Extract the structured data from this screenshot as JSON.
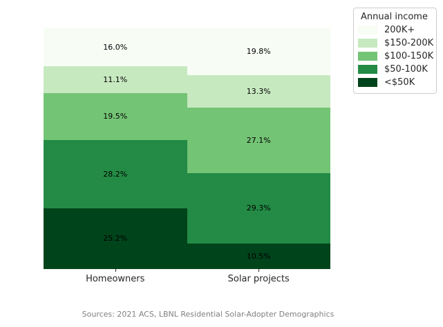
{
  "chart_data": {
    "type": "bar",
    "variant": "stacked-100-percent",
    "categories": [
      "Homeowners",
      "Solar projects"
    ],
    "series": [
      {
        "name": "200K+",
        "color": "#f7fcf5",
        "values": [
          16.0,
          19.8
        ]
      },
      {
        "name": "$150-200K",
        "color": "#c7e9c0",
        "values": [
          11.1,
          13.3
        ]
      },
      {
        "name": "$100-150K",
        "color": "#74c476",
        "values": [
          19.5,
          27.1
        ]
      },
      {
        "name": "$50-100K",
        "color": "#238b45",
        "values": [
          28.2,
          29.3
        ]
      },
      {
        "name": "<$50K",
        "color": "#00441b",
        "values": [
          25.2,
          10.5
        ]
      }
    ],
    "labels": [
      [
        "16.0%",
        "11.1%",
        "19.5%",
        "28.2%",
        "25.2%"
      ],
      [
        "19.8%",
        "13.3%",
        "27.1%",
        "29.3%",
        "10.5%"
      ]
    ],
    "title": "",
    "xlabel": "",
    "ylabel": "",
    "ylim": [
      0,
      100
    ],
    "grid": false,
    "y_axis_visible": false,
    "legend": {
      "title": "Annual income",
      "position": "upper right"
    },
    "label_text_color": "#000000",
    "tick_label_color": "#262626"
  },
  "footer": {
    "source_text": "Sources: 2021 ACS, LBNL Residential Solar-Adopter Demographics"
  }
}
